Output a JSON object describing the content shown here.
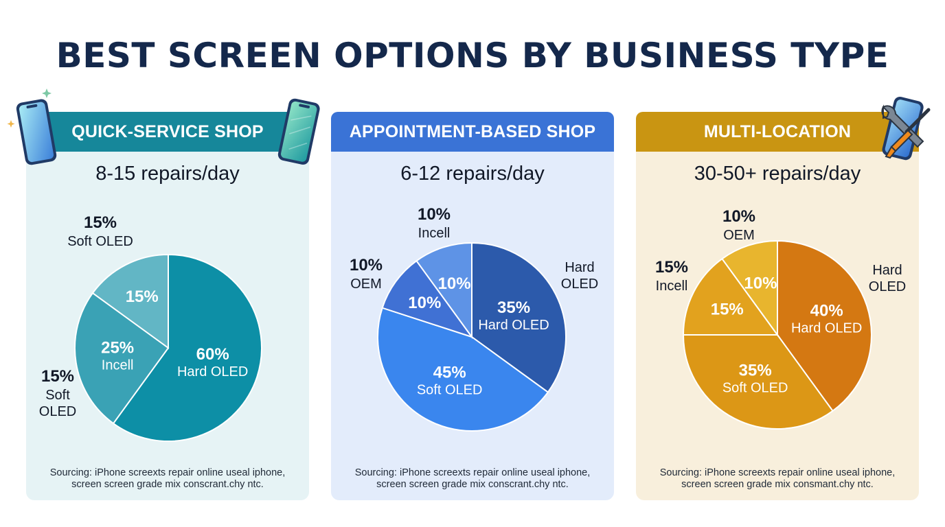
{
  "page": {
    "title": "BEST SCREEN OPTIONS BY BUSINESS TYPE"
  },
  "colors": {
    "title": "#14284b",
    "panel_1": {
      "header": "#16879a",
      "background": "#e6f3f5",
      "slices": [
        "#0d8fa6",
        "#3aa2b5",
        "#62b6c5"
      ]
    },
    "panel_2": {
      "header": "#3a73d6",
      "background": "#e3ecfb",
      "slices": [
        "#2c5aab",
        "#3a86ee",
        "#4071d4",
        "#5e93e6"
      ]
    },
    "panel_3": {
      "header": "#c99512",
      "background": "#f8efdc",
      "slices": [
        "#d47812",
        "#dc9716",
        "#e2a21e",
        "#e8b52e"
      ]
    }
  },
  "panels": [
    {
      "header": "QUICK-SERVICE SHOP",
      "repairs": "8-15 repairs/day",
      "sourcing": [
        "Sourcing: iPhone screexts repair online useal iphone,",
        "screen screen grade mix conscrant.chy ntc."
      ],
      "callouts": [
        {
          "pct": "15%",
          "name_lines": [
            "Soft OLED"
          ]
        },
        {
          "pct": "15%",
          "name_lines": [
            "Soft",
            "OLED"
          ]
        }
      ]
    },
    {
      "header": "APPOINTMENT-BASED SHOP",
      "repairs": "6-12 repairs/day",
      "sourcing": [
        "Sourcing: iPhone screexts repair online useal iphone,",
        "screen screen grade mix conscrant.chy ntc."
      ],
      "callouts": [
        {
          "pct": "10%",
          "name_lines": [
            "Incell"
          ]
        },
        {
          "pct": "10%",
          "name_lines": [
            "OEM"
          ]
        },
        {
          "pct": "",
          "name_lines": [
            "Hard",
            "OLED"
          ]
        }
      ]
    },
    {
      "header": "MULTI-LOCATION",
      "repairs": "30-50+ repairs/day",
      "sourcing": [
        "Sourcing: iPhone screexts repair online useal iphone,",
        "screen screen grade mix consmant.chy ntc."
      ],
      "callouts": [
        {
          "pct": "10%",
          "name_lines": [
            "OEM"
          ]
        },
        {
          "pct": "15%",
          "name_lines": [
            "Incell"
          ]
        },
        {
          "pct": "",
          "name_lines": [
            "Hard",
            "OLED"
          ]
        }
      ]
    }
  ],
  "chart_data": [
    {
      "type": "pie",
      "title": "QUICK-SERVICE SHOP",
      "slices": [
        {
          "label": "Hard OLED",
          "value": 60,
          "value_label": "60%",
          "name": "Hard OLED"
        },
        {
          "label": "Incell",
          "value": 25,
          "value_label": "25%",
          "name": "Incell"
        },
        {
          "label": "",
          "value": 15,
          "value_label": "15%",
          "name": ""
        }
      ]
    },
    {
      "type": "pie",
      "title": "APPOINTMENT-BASED SHOP",
      "slices": [
        {
          "label": "Hard OLED",
          "value": 35,
          "value_label": "35%",
          "name": "Hard OLED"
        },
        {
          "label": "Soft OLED",
          "value": 45,
          "value_label": "45%",
          "name": "Soft OLED"
        },
        {
          "label": "OEM",
          "value": 10,
          "value_label": "10%",
          "name": ""
        },
        {
          "label": "Incell",
          "value": 10,
          "value_label": "10%",
          "name": ""
        }
      ]
    },
    {
      "type": "pie",
      "title": "MULTI-LOCATION",
      "slices": [
        {
          "label": "Hard OLED",
          "value": 40,
          "value_label": "40%",
          "name": "Hard OLED"
        },
        {
          "label": "Soft OLED",
          "value": 35,
          "value_label": "35%",
          "name": "Soft OLED"
        },
        {
          "label": "Incell",
          "value": 15,
          "value_label": "15%",
          "name": ""
        },
        {
          "label": "OEM",
          "value": 10,
          "value_label": "10%",
          "name": ""
        }
      ]
    }
  ],
  "icons": [
    "smartphone-icon",
    "smartphone-icon",
    "sparkle-icon",
    "smartphone-icon",
    "wrench-icon",
    "screwdriver-icon"
  ]
}
